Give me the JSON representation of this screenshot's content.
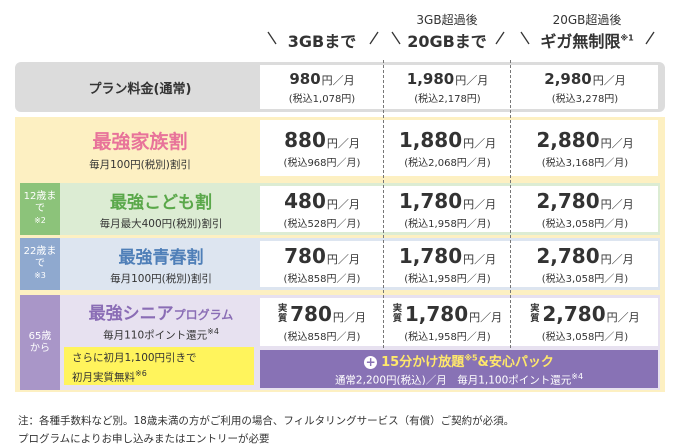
{
  "header": {
    "columns": [
      {
        "main": "3GBまで"
      },
      {
        "sub": "3GB超過後",
        "main": "20GBまで"
      },
      {
        "sub": "20GB超過後",
        "main": "ギガ無制限",
        "note": "※1"
      }
    ]
  },
  "rows": [
    {
      "label": "プラン料金(通常)",
      "prices": [
        {
          "price": "980",
          "unit": "円／月",
          "tax": "(税込1,078円)"
        },
        {
          "price": "1,980",
          "unit": "円／月",
          "tax": "(税込2,178円)"
        },
        {
          "price": "2,980",
          "unit": "円／月",
          "tax": "(税込3,278円)"
        }
      ]
    },
    {
      "title": "最強家族割",
      "desc": "毎月100円(税別)割引",
      "prices": [
        {
          "price": "880",
          "unit": "円／月",
          "tax": "(税込968円／月)"
        },
        {
          "price": "1,880",
          "unit": "円／月",
          "tax": "(税込2,068円／月)"
        },
        {
          "price": "2,880",
          "unit": "円／月",
          "tax": "(税込3,168円／月)"
        }
      ]
    },
    {
      "age": "12歳まで",
      "age_note": "※2",
      "title": "最強こども割",
      "desc": "毎月最大400円(税別)割引",
      "prices": [
        {
          "price": "480",
          "unit": "円／月",
          "tax": "(税込528円／月)"
        },
        {
          "price": "1,780",
          "unit": "円／月",
          "tax": "(税込1,958円／月)"
        },
        {
          "price": "2,780",
          "unit": "円／月",
          "tax": "(税込3,058円／月)"
        }
      ]
    },
    {
      "age": "22歳まで",
      "age_note": "※3",
      "title": "最強青春割",
      "desc": "毎月100円(税別)割引",
      "prices": [
        {
          "price": "780",
          "unit": "円／月",
          "tax": "(税込858円／月)"
        },
        {
          "price": "1,780",
          "unit": "円／月",
          "tax": "(税込1,958円／月)"
        },
        {
          "price": "2,780",
          "unit": "円／月",
          "tax": "(税込3,058円／月)"
        }
      ]
    },
    {
      "age": "65歳から",
      "title": "最強シニア",
      "title_suffix": "プログラム",
      "desc": "毎月110ポイント還元",
      "desc_note": "※4",
      "prices": [
        {
          "prefix": "実質",
          "price": "780",
          "unit": "円／月",
          "tax": "(税込858円／月)"
        },
        {
          "prefix": "実質",
          "price": "1,780",
          "unit": "円／月",
          "tax": "(税込1,958円／月)"
        },
        {
          "prefix": "実質",
          "price": "2,780",
          "unit": "円／月",
          "tax": "(税込3,058円／月)"
        }
      ],
      "promo": {
        "lines": [
          "さらに初月1,100円引きで",
          "初月実質無料"
        ],
        "note": "※6"
      },
      "bar": {
        "title": "15分かけ放題",
        "title_note": "※5",
        "title2": "&安心パック",
        "desc": "通常2,200円(税込)／月　毎月1,100ポイント還元",
        "desc_note": "※4"
      }
    }
  ],
  "footer": {
    "lines": [
      "注：各種手数料など別。18歳未満の方がご利用の場合、フィルタリングサービス（有償）ご契約が必須。",
      "プログラムによりお申し込みまたはエントリーが必要"
    ]
  }
}
